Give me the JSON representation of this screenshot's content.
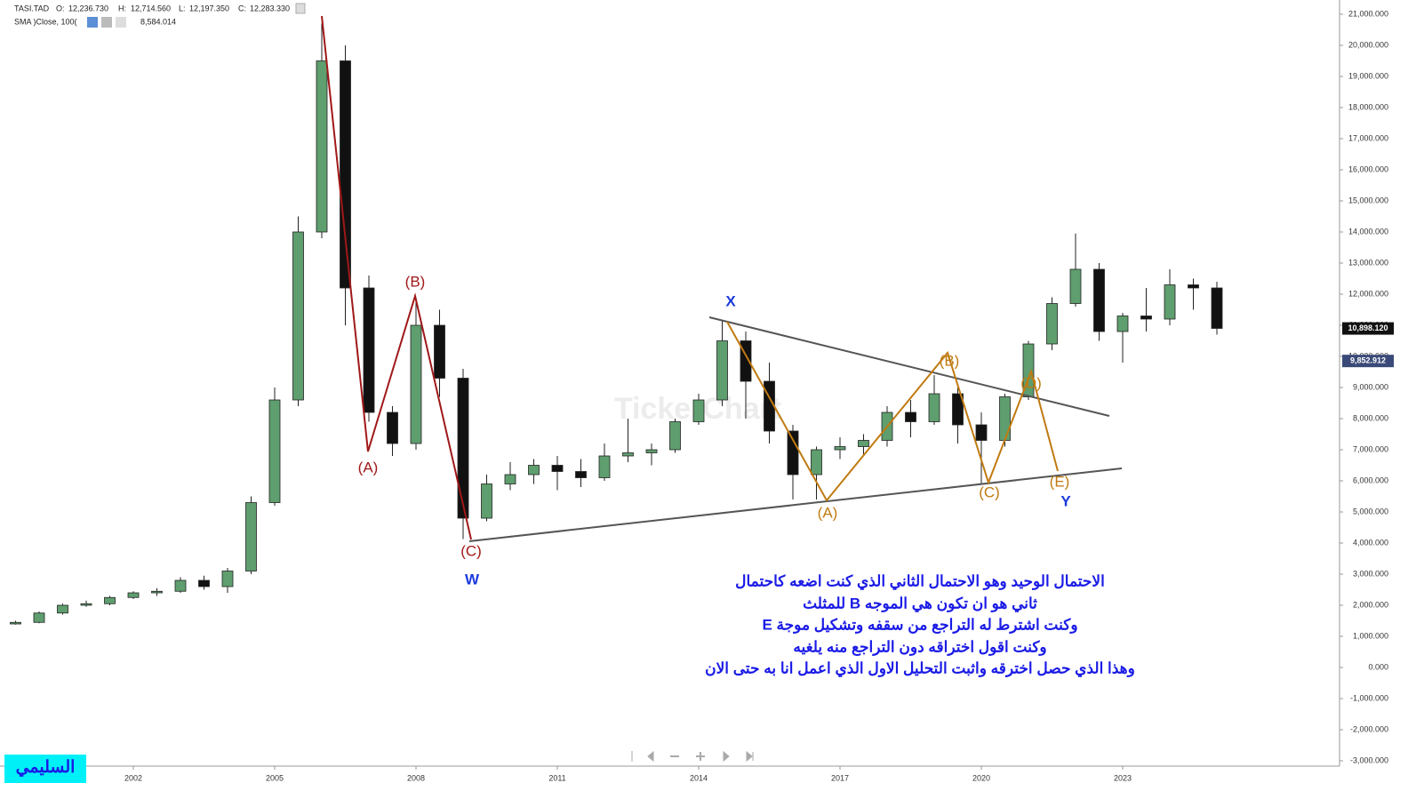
{
  "header": {
    "symbol": "TASI.TAD",
    "open_label": "O:",
    "open": "12,236.730",
    "high_label": "H:",
    "high": "12,714.560",
    "low_label": "L:",
    "low": "12,197.350",
    "close_label": "C:",
    "close": "12,283.330",
    "sma_label": "SMA )Close, 100(",
    "sma_value": "8,584.014"
  },
  "chart_data": {
    "type": "candlestick",
    "categories": [
      null,
      null,
      null,
      null,
      null,
      "2002",
      null,
      null,
      null,
      null,
      null,
      "2005",
      null,
      null,
      null,
      null,
      null,
      "2008",
      null,
      null,
      null,
      null,
      null,
      "2011",
      null,
      null,
      null,
      null,
      null,
      "2014",
      null,
      null,
      null,
      null,
      null,
      "2017",
      null,
      null,
      null,
      null,
      null,
      "2020",
      null,
      null,
      null,
      null,
      null,
      "2023",
      null,
      null,
      null,
      null
    ],
    "open": [
      1400,
      1450,
      1750,
      2000,
      2050,
      2250,
      2400,
      2450,
      2800,
      2600,
      3100,
      5300,
      8600,
      14000,
      19500,
      12200,
      8200,
      7200,
      11000,
      9300,
      4800,
      5900,
      6200,
      6500,
      6300,
      6100,
      6800,
      6900,
      7000,
      7900,
      8600,
      10500,
      9200,
      7600,
      6200,
      7000,
      7100,
      7300,
      8200,
      7900,
      8800,
      7800,
      7300,
      8700,
      10400,
      11700,
      12800,
      10800,
      11300,
      11200,
      12300,
      12200
    ],
    "high": [
      1500,
      1800,
      2050,
      2150,
      2300,
      2450,
      2550,
      2900,
      2950,
      3200,
      5500,
      9000,
      14500,
      20700,
      20000,
      12600,
      8400,
      11900,
      11500,
      9600,
      6200,
      6600,
      6700,
      6800,
      6700,
      7200,
      8000,
      7200,
      8000,
      8800,
      11150,
      10800,
      9800,
      7800,
      7100,
      7400,
      7500,
      8400,
      8600,
      9400,
      9000,
      8200,
      8800,
      10500,
      11900,
      13950,
      13000,
      11400,
      12200,
      12800,
      12500,
      12400
    ],
    "low": [
      1380,
      1420,
      1700,
      1950,
      2000,
      2200,
      2300,
      2400,
      2500,
      2400,
      3000,
      5200,
      8400,
      13800,
      11000,
      7900,
      6800,
      7000,
      8700,
      4130,
      4700,
      5700,
      5900,
      5700,
      5800,
      6000,
      6600,
      6500,
      6900,
      7800,
      8400,
      8000,
      7200,
      5400,
      5400,
      6700,
      6800,
      7100,
      7400,
      7800,
      7200,
      5900,
      7100,
      8600,
      10200,
      11600,
      10500,
      9800,
      10800,
      11000,
      11500,
      10700
    ],
    "close": [
      1450,
      1750,
      2000,
      2050,
      2250,
      2400,
      2450,
      2800,
      2600,
      3100,
      5300,
      8600,
      14000,
      19500,
      12200,
      8200,
      7200,
      11000,
      9300,
      4800,
      5900,
      6200,
      6500,
      6300,
      6100,
      6800,
      6900,
      7000,
      7900,
      8600,
      10500,
      9200,
      7600,
      6200,
      7000,
      7100,
      7300,
      8200,
      7900,
      8800,
      7800,
      7300,
      8700,
      10400,
      11700,
      12800,
      10800,
      11300,
      11200,
      12300,
      12200,
      10900
    ],
    "up_color": "#5f9e6e",
    "down_color": "#111111",
    "ylim": [
      -3171,
      21457
    ],
    "yticks": [
      {
        "value": 21000,
        "label": "21,000.000"
      },
      {
        "value": 20000,
        "label": "20,000.000"
      },
      {
        "value": 19000,
        "label": "19,000.000"
      },
      {
        "value": 18000,
        "label": "18,000.000"
      },
      {
        "value": 17000,
        "label": "17,000.000"
      },
      {
        "value": 16000,
        "label": "16,000.000"
      },
      {
        "value": 15000,
        "label": "15,000.000"
      },
      {
        "value": 14000,
        "label": "14,000.000"
      },
      {
        "value": 13000,
        "label": "13,000.000"
      },
      {
        "value": 12000,
        "label": "12,000.000"
      },
      {
        "value": 11000,
        "label": "11,000.000"
      },
      {
        "value": 10000,
        "label": "10,000.000"
      },
      {
        "value": 9000,
        "label": "9,000.000"
      },
      {
        "value": 8000,
        "label": "8,000.000"
      },
      {
        "value": 7000,
        "label": "7,000.000"
      },
      {
        "value": 6000,
        "label": "6,000.000"
      },
      {
        "value": 5000,
        "label": "5,000.000"
      },
      {
        "value": 4000,
        "label": "4,000.000"
      },
      {
        "value": 3000,
        "label": "3,000.000"
      },
      {
        "value": 2000,
        "label": "2,000.000"
      },
      {
        "value": 1000,
        "label": "1,000.000"
      },
      {
        "value": 0,
        "label": "0.000"
      },
      {
        "value": -1000,
        "label": "-1,000.000"
      },
      {
        "value": -2000,
        "label": "-2,000.000"
      },
      {
        "value": -3000,
        "label": "-3,000.000"
      }
    ],
    "price_tags": [
      {
        "value": 10898.12,
        "label": "10,898.120",
        "color": "#111111"
      },
      {
        "value": 9852.912,
        "label": "9,852.912",
        "color": "#3a4a78"
      }
    ]
  },
  "annotations": [
    "(A)",
    "(B)",
    "(C)",
    "W",
    "X",
    "(A)",
    "(B)",
    "(C)",
    "(D)",
    "(E)",
    "Y"
  ],
  "note_lines": [
    "الاحتمال الوحيد وهو الاحتمال الثاني الذي كنت اضعه كاحتمال",
    "ثاني هو ان تكون هي الموجه B للمثلث",
    "وكنت اشترط له التراجع من سقفه وتشكيل موجة E",
    "وكنت اقول اختراقه دون التراجع منه يلغيه",
    "وهذا الذي حصل اخترقه واثبت التحليل الاول الذي اعمل انا به حتى الان"
  ],
  "watermark": "TickerChart",
  "logo": "السليمي"
}
